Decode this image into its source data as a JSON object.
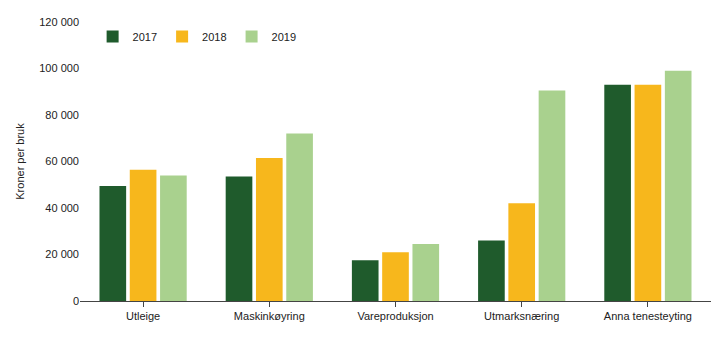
{
  "chart_data": {
    "type": "bar",
    "y_label": "Kroner per bruk",
    "categories": [
      "Utleige",
      "Maskinkøyring",
      "Vareproduksjon",
      "Utmarksnæring",
      "Anna tenesteyting"
    ],
    "series": [
      {
        "name": "2017",
        "color": "#1f5b2c",
        "values": [
          49500,
          53500,
          17500,
          26000,
          93000
        ]
      },
      {
        "name": "2018",
        "color": "#f7b71c",
        "values": [
          56500,
          61500,
          21000,
          42000,
          93000
        ]
      },
      {
        "name": "2019",
        "color": "#a9d18e",
        "values": [
          54000,
          72000,
          24500,
          90500,
          99000
        ]
      }
    ],
    "ylim": [
      0,
      120000
    ],
    "yticks": [
      0,
      {
        "value": 20000,
        "label": "20 000"
      },
      {
        "value": 40000,
        "label": "40 000"
      },
      {
        "value": 60000,
        "label": "60 000"
      },
      {
        "value": 80000,
        "label": "80 000"
      },
      {
        "value": 100000,
        "label": "100 000"
      },
      {
        "value": 120000,
        "label": "120 000"
      }
    ],
    "grid": false,
    "legend": "top left"
  }
}
